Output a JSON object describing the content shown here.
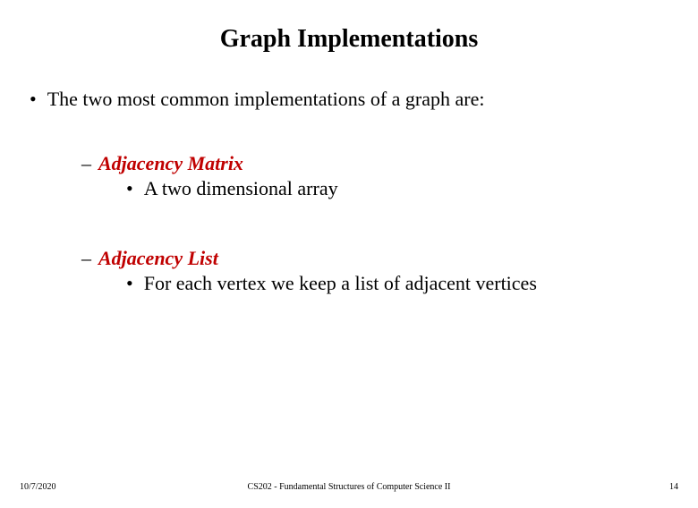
{
  "title": "Graph Implementations",
  "intro_bullet": "The two most common implementations of a graph are:",
  "items": [
    {
      "heading": "Adjacency Matrix",
      "heading_color": "#c00000",
      "sub": "A two dimensional array"
    },
    {
      "heading": "Adjacency List",
      "heading_color": "#c00000",
      "sub": "For each vertex we keep a list of adjacent vertices"
    }
  ],
  "footer": {
    "date": "10/7/2020",
    "course": "CS202 - Fundamental Structures of Computer Science II",
    "page_number": "14"
  },
  "colors": {
    "background": "#ffffff",
    "text": "#000000",
    "accent": "#c00000"
  },
  "fonts": {
    "family": "Times New Roman",
    "title_size_pt": 28,
    "body_size_pt": 22,
    "footer_size_pt": 10
  }
}
